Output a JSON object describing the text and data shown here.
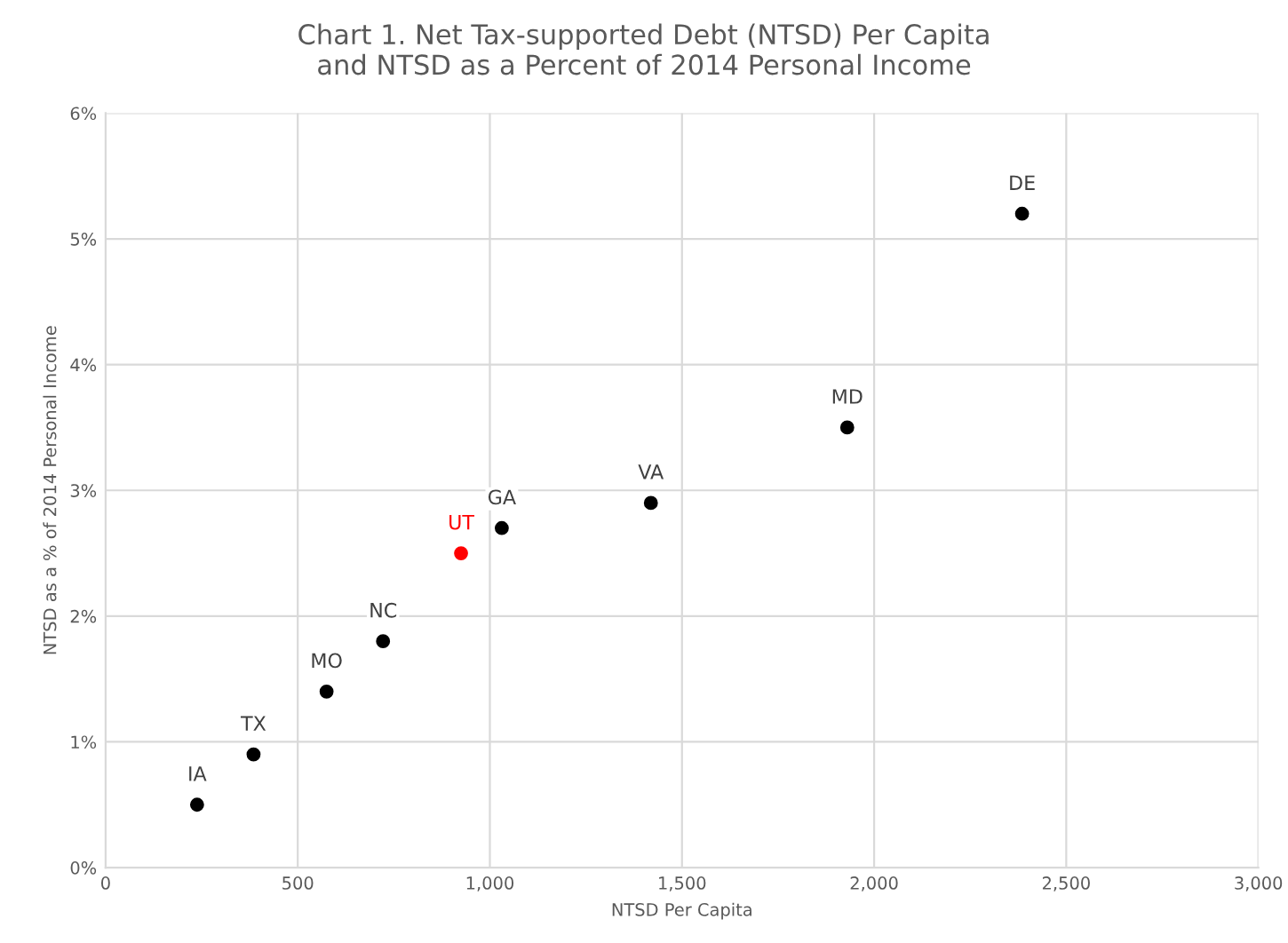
{
  "chart_data": {
    "type": "scatter",
    "title": "Chart 1. Net Tax-supported Debt (NTSD) Per Capita\nand NTSD as a Percent of 2014 Personal Income",
    "xlabel": "NTSD Per Capita",
    "ylabel": "NTSD as a % of 2014 Personal Income",
    "x": [
      238,
      385,
      575,
      722,
      925,
      1031,
      1419,
      1930,
      2385
    ],
    "values": [
      0.5,
      0.9,
      1.4,
      1.8,
      2.5,
      2.7,
      2.9,
      3.5,
      5.2
    ],
    "colors": [
      "#000000",
      "#000000",
      "#000000",
      "#000000",
      "#ff0000",
      "#000000",
      "#000000",
      "#000000",
      "#000000"
    ],
    "annotations": [
      {
        "text": "IA",
        "x": 238,
        "y": 0.5
      },
      {
        "text": "TX",
        "x": 385,
        "y": 0.9
      },
      {
        "text": "MO",
        "x": 575,
        "y": 1.4
      },
      {
        "text": "NC",
        "x": 722,
        "y": 1.8
      },
      {
        "text": "UT",
        "x": 925,
        "y": 2.5
      },
      {
        "text": "GA",
        "x": 1031,
        "y": 2.7
      },
      {
        "text": "VA",
        "x": 1419,
        "y": 2.9
      },
      {
        "text": "MD",
        "x": 1930,
        "y": 3.5
      },
      {
        "text": "DE",
        "x": 2385,
        "y": 5.2
      }
    ],
    "xlim": [
      0,
      3000
    ],
    "xticks": [
      0,
      500,
      {
        "value": 1000,
        "label": "1,000"
      },
      {
        "value": 1500,
        "label": "1,500"
      },
      {
        "value": 2000,
        "label": "2,000"
      },
      {
        "value": 2500,
        "label": "2,500"
      },
      {
        "value": 3000,
        "label": "3,000"
      }
    ],
    "ylim": [
      0,
      6
    ],
    "yticks": [
      {
        "value": 0,
        "label": "0%"
      },
      {
        "value": 1,
        "label": "1%"
      },
      {
        "value": 2,
        "label": "2%"
      },
      {
        "value": 3,
        "label": "3%"
      },
      {
        "value": 4,
        "label": "4%"
      },
      {
        "value": 5,
        "label": "5%"
      },
      {
        "value": 6,
        "label": "6%"
      }
    ],
    "grid": true,
    "marker": "circle"
  }
}
